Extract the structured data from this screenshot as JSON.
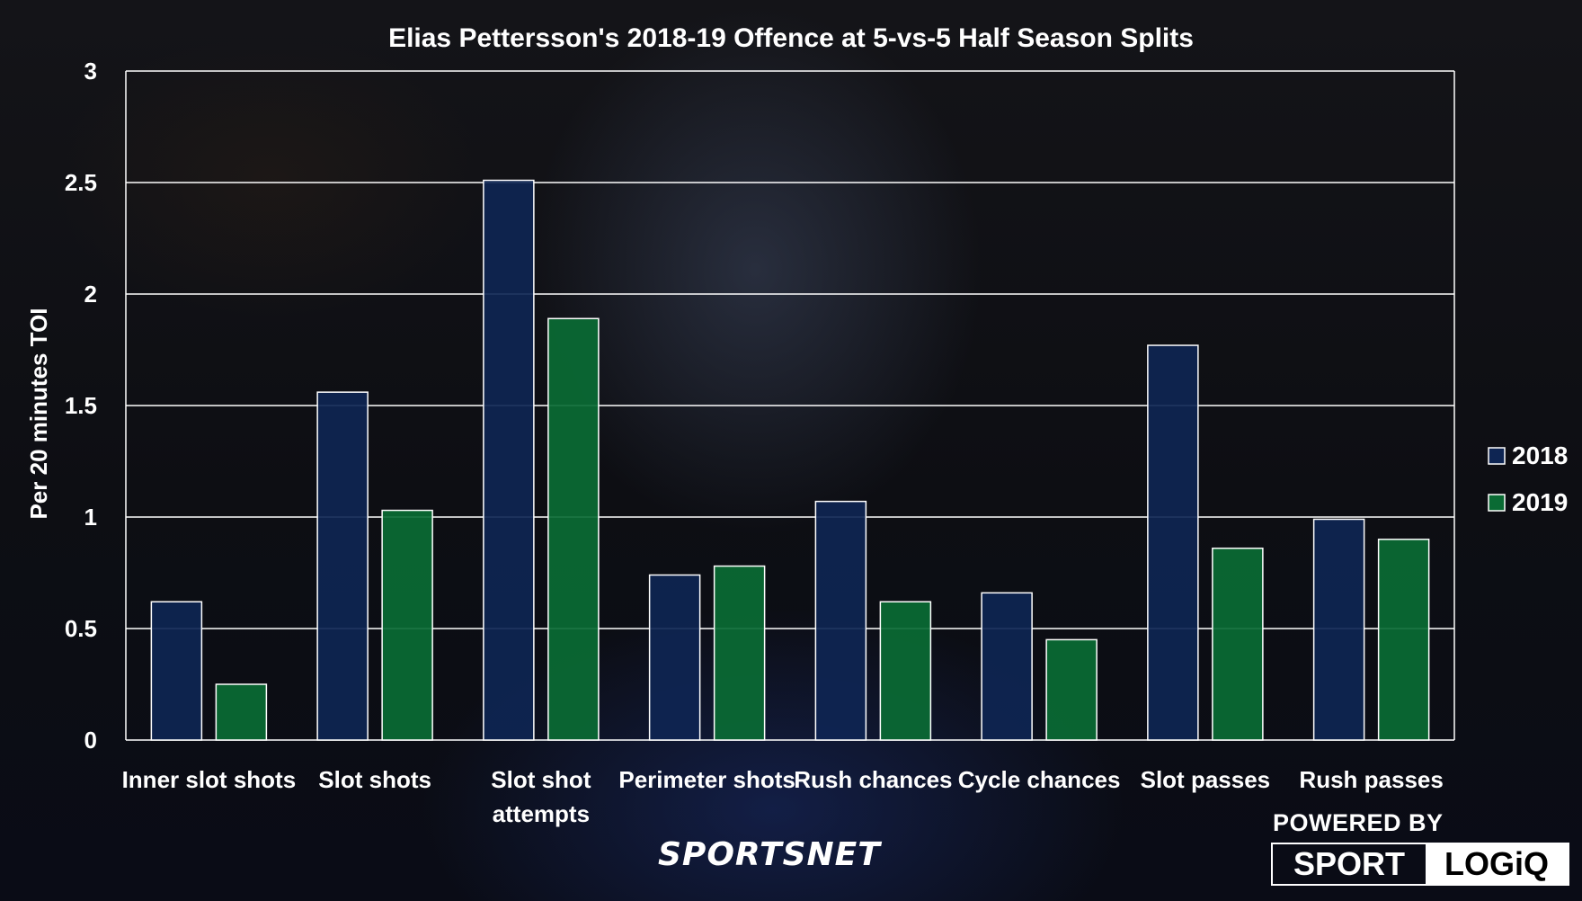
{
  "brand": {
    "sportsnet": "SPORTSNET",
    "powered_by": "POWERED BY",
    "logo_sport": "SPORT",
    "logo_logiq": "LOGiQ"
  },
  "colors": {
    "series_2018": "#0e2553",
    "series_2019": "#0a6b34",
    "grid": "#ffffff",
    "text": "#ffffff"
  },
  "chart_data": {
    "type": "bar",
    "title": "Elias Pettersson's 2018-19 Offence at 5-vs-5 Half Season Splits",
    "xlabel": "",
    "ylabel": "Per 20 minutes TOI",
    "ylim": [
      0,
      3
    ],
    "yticks": [
      0,
      0.5,
      1,
      1.5,
      2,
      2.5,
      3
    ],
    "ytick_labels": [
      "0",
      "0.5",
      "1",
      "1.5",
      "2",
      "2.5",
      "3"
    ],
    "grid": true,
    "legend_position": "right",
    "categories": [
      [
        "Inner slot shots"
      ],
      [
        "Slot shots"
      ],
      [
        "Slot shot",
        "attempts"
      ],
      [
        "Perimeter shots"
      ],
      [
        "Rush chances"
      ],
      [
        "Cycle chances"
      ],
      [
        "Slot passes"
      ],
      [
        "Rush passes"
      ]
    ],
    "series": [
      {
        "name": "2018",
        "values": [
          0.62,
          1.56,
          2.51,
          0.74,
          1.07,
          0.66,
          1.77,
          0.99
        ]
      },
      {
        "name": "2019",
        "values": [
          0.25,
          1.03,
          1.89,
          0.78,
          0.62,
          0.45,
          0.86,
          0.9
        ]
      }
    ]
  }
}
